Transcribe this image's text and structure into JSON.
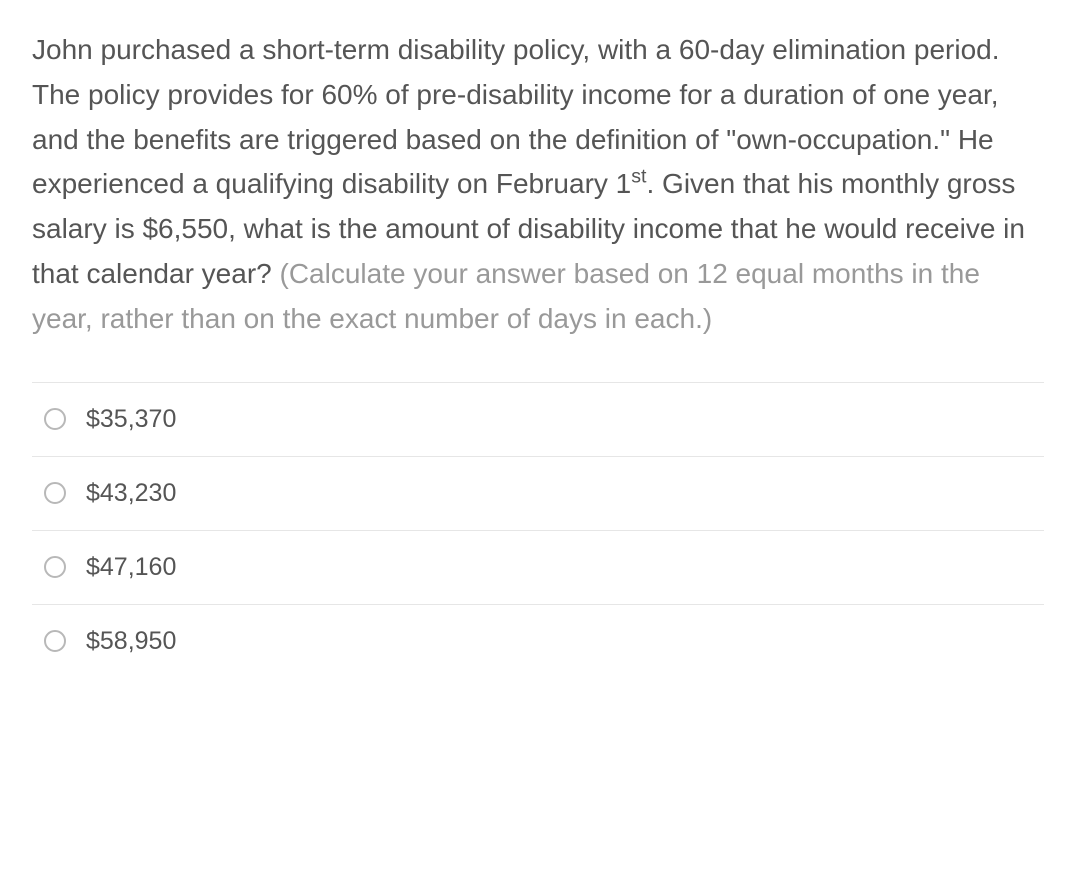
{
  "question": {
    "main_text_part1": "John purchased a short-term disability policy, with a 60-day elimination period. The policy provides for 60% of pre-disability income for a duration of one year, and the benefits are triggered based on the definition of \"own-occupation.\" He experienced a qualifying disability on February 1",
    "superscript": "st",
    "main_text_part2": ". Given that his monthly gross salary is $6,550, what is the amount of disability income that he would receive in that calendar year? ",
    "hint_text": "(Calculate your answer based on 12 equal months in the year, rather than on the exact number of days in each.)"
  },
  "options": [
    {
      "label": "$35,370"
    },
    {
      "label": "$43,230"
    },
    {
      "label": "$47,160"
    },
    {
      "label": "$58,950"
    }
  ],
  "styling": {
    "question_font_size": 28,
    "option_font_size": 25,
    "text_color": "#555555",
    "hint_color": "#999999",
    "border_color": "#e6e6e6",
    "radio_border_color": "#b8b8b8",
    "background_color": "#ffffff"
  }
}
